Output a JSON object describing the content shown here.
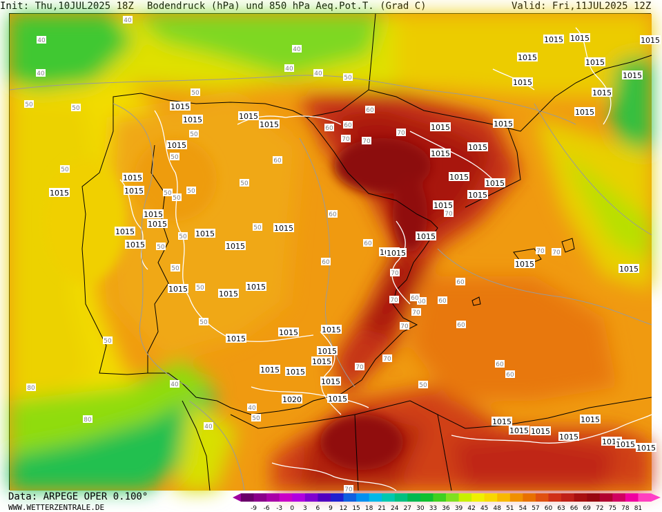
{
  "header": {
    "init": "Init: Thu,10JUL2025 18Z",
    "title": "Bodendruck (hPa) und 850 hPa Aeq.Pot.T. (Grad C)",
    "valid": "Valid: Fri,11JUL2025 12Z"
  },
  "footer": {
    "data_source": "Data: ARPEGE OPER 0.100°",
    "website": "WWW.WETTERZENTRALE.DE"
  },
  "legend": {
    "ticks": [
      "-9",
      "-6",
      "-3",
      "0",
      "3",
      "6",
      "9",
      "12",
      "15",
      "18",
      "21",
      "24",
      "27",
      "30",
      "33",
      "36",
      "39",
      "42",
      "45",
      "48",
      "51",
      "54",
      "57",
      "60",
      "63",
      "66",
      "69",
      "72",
      "75",
      "78",
      "81"
    ],
    "colors": [
      "#6a006a",
      "#8a008a",
      "#a800a8",
      "#c800c8",
      "#b000e0",
      "#8000d0",
      "#5000c0",
      "#2020d0",
      "#1060e0",
      "#0090f0",
      "#00b8e8",
      "#00c8b0",
      "#00c080",
      "#00b850",
      "#10c030",
      "#40d020",
      "#80e020",
      "#c8f000",
      "#f0f000",
      "#f8d800",
      "#f8b800",
      "#f09000",
      "#e87000",
      "#e05010",
      "#d03018",
      "#c02018",
      "#a81010",
      "#980810",
      "#b00030",
      "#d00060",
      "#f000a0",
      "#ff40c0"
    ],
    "arrow_left_color": "#a000a0",
    "arrow_right_color": "#ff40c8"
  },
  "map": {
    "isobar_labels": [
      {
        "text": "1015"
      },
      {
        "text": "1015"
      },
      {
        "text": "1015"
      },
      {
        "text": "1015"
      },
      {
        "text": "1015"
      },
      {
        "text": "1015"
      },
      {
        "text": "1015"
      },
      {
        "text": "1015"
      },
      {
        "text": "1015"
      },
      {
        "text": "1015"
      },
      {
        "text": "1015"
      },
      {
        "text": "1015"
      },
      {
        "text": "1015"
      },
      {
        "text": "1015"
      },
      {
        "text": "1015"
      },
      {
        "text": "1015"
      },
      {
        "text": "1015"
      },
      {
        "text": "1015"
      },
      {
        "text": "1015"
      },
      {
        "text": "1015"
      },
      {
        "text": "1015"
      },
      {
        "text": "1015"
      },
      {
        "text": "1015"
      },
      {
        "text": "1015"
      },
      {
        "text": "1015"
      },
      {
        "text": "1015"
      },
      {
        "text": "1015"
      },
      {
        "text": "1015"
      },
      {
        "text": "1015"
      },
      {
        "text": "1015"
      },
      {
        "text": "1015"
      },
      {
        "text": "1015"
      },
      {
        "text": "1015"
      },
      {
        "text": "1015"
      },
      {
        "text": "1015"
      },
      {
        "text": "1015"
      },
      {
        "text": "1015"
      },
      {
        "text": "1015"
      },
      {
        "text": "1015"
      },
      {
        "text": "1020"
      },
      {
        "text": "1015"
      },
      {
        "text": "1015"
      },
      {
        "text": "1015"
      },
      {
        "text": "1015"
      },
      {
        "text": "1015"
      },
      {
        "text": "1015"
      },
      {
        "text": "1015"
      },
      {
        "text": "1015"
      },
      {
        "text": "1015"
      },
      {
        "text": "1015"
      },
      {
        "text": "1015"
      },
      {
        "text": "1015"
      },
      {
        "text": "1015"
      },
      {
        "text": "1015"
      },
      {
        "text": "1015"
      },
      {
        "text": "1015"
      },
      {
        "text": "1015"
      },
      {
        "text": "1015"
      }
    ],
    "theta_labels": [
      {
        "text": "40"
      },
      {
        "text": "40"
      },
      {
        "text": "40"
      },
      {
        "text": "40"
      },
      {
        "text": "40"
      },
      {
        "text": "40"
      },
      {
        "text": "50"
      },
      {
        "text": "50"
      },
      {
        "text": "50"
      },
      {
        "text": "50"
      },
      {
        "text": "50"
      },
      {
        "text": "50"
      },
      {
        "text": "50"
      },
      {
        "text": "50"
      },
      {
        "text": "50"
      },
      {
        "text": "50"
      },
      {
        "text": "50"
      },
      {
        "text": "50"
      },
      {
        "text": "50"
      },
      {
        "text": "50"
      },
      {
        "text": "50"
      },
      {
        "text": "50"
      },
      {
        "text": "50"
      },
      {
        "text": "50"
      },
      {
        "text": "60"
      },
      {
        "text": "60"
      },
      {
        "text": "60"
      },
      {
        "text": "60"
      },
      {
        "text": "60"
      },
      {
        "text": "60"
      },
      {
        "text": "60"
      },
      {
        "text": "60"
      },
      {
        "text": "60"
      },
      {
        "text": "60"
      },
      {
        "text": "60"
      },
      {
        "text": "60"
      },
      {
        "text": "70"
      },
      {
        "text": "70"
      },
      {
        "text": "70"
      },
      {
        "text": "70"
      },
      {
        "text": "70"
      },
      {
        "text": "70"
      },
      {
        "text": "70"
      },
      {
        "text": "70"
      },
      {
        "text": "70"
      },
      {
        "text": "70"
      },
      {
        "text": "70"
      },
      {
        "text": "70"
      },
      {
        "text": "80"
      },
      {
        "text": "80"
      },
      {
        "text": "40"
      },
      {
        "text": "40"
      },
      {
        "text": "40"
      },
      {
        "text": "50"
      },
      {
        "text": "50"
      },
      {
        "text": "60"
      },
      {
        "text": "60"
      },
      {
        "text": "70"
      }
    ]
  }
}
